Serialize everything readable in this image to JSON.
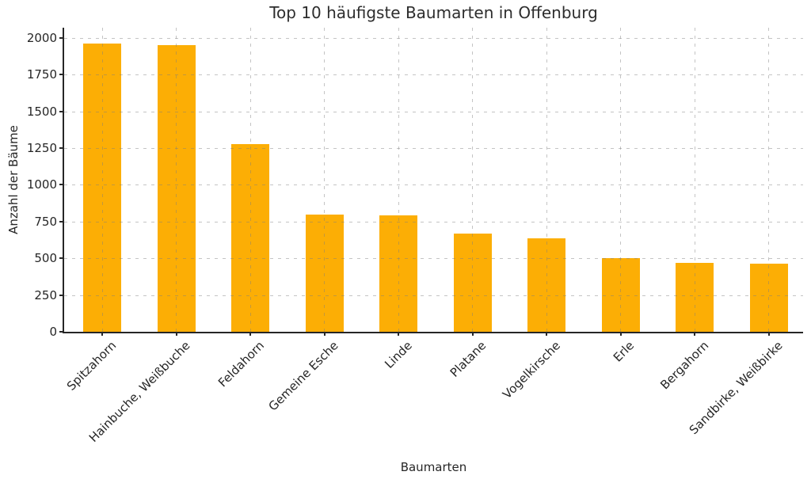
{
  "chart_data": {
    "type": "bar",
    "title": "Top 10 häufigste Baumarten in Offenburg",
    "xlabel": "Baumarten",
    "ylabel": "Anzahl der Bäume",
    "categories": [
      "Spitzahorn",
      "Hainbuche, Weißbuche",
      "Feldahorn",
      "Gemeine Esche",
      "Linde",
      "Platane",
      "Vogelkirsche",
      "Erle",
      "Bergahorn",
      "Sandbirke, Weißbirke"
    ],
    "values": [
      1960,
      1950,
      1275,
      800,
      790,
      670,
      635,
      500,
      470,
      465
    ],
    "yticks": [
      0,
      250,
      500,
      750,
      1000,
      1250,
      1500,
      1750,
      2000
    ],
    "ylim": [
      0,
      2070
    ],
    "grid": true,
    "grid_style": "dashed",
    "legend": "none",
    "bar_color": "#FCAE05",
    "grid_color": "#c9c9c9",
    "axis_color": "#262626",
    "text_color": "#262626",
    "background_color": "#ffffff"
  }
}
